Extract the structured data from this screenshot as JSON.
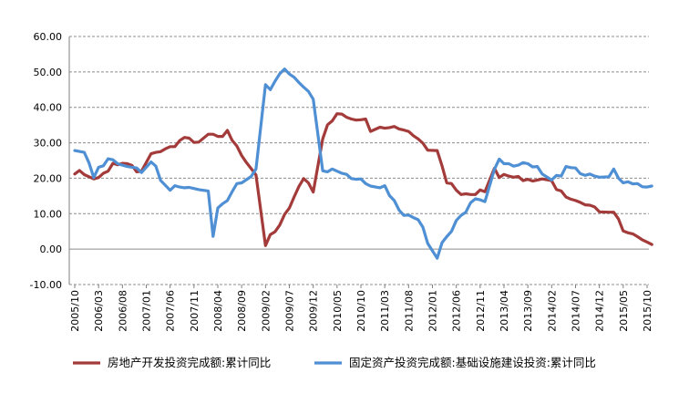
{
  "chart_data": {
    "type": "line",
    "y_ticks": [
      "60.00",
      "50.00",
      "40.00",
      "30.00",
      "20.00",
      "10.00",
      "0.00",
      "-10.00"
    ],
    "ylim": [
      -10,
      60
    ],
    "grid": true,
    "legend_position": "bottom",
    "x_ticks": [
      "2005/10",
      "2006/03",
      "2006/08",
      "2007/01",
      "2007/06",
      "2007/11",
      "2008/04",
      "2008/09",
      "2009/02",
      "2009/07",
      "2009/12",
      "2010/05",
      "2010/10",
      "2011/03",
      "2011/08",
      "2012/01",
      "2012/06",
      "2012/11",
      "2013/04",
      "2013/09",
      "2014/02",
      "2014/07",
      "2014/12",
      "2015/05",
      "2015/10"
    ],
    "series": [
      {
        "name": "房地产开发投资完成额:累计同比",
        "color": "#a33b3a",
        "x": [
          "2005/10",
          "2005/11",
          "2005/12",
          "2006/02",
          "2006/03",
          "2006/04",
          "2006/05",
          "2006/06",
          "2006/07",
          "2006/08",
          "2006/09",
          "2006/10",
          "2006/11",
          "2006/12",
          "2007/02",
          "2007/03",
          "2007/04",
          "2007/05",
          "2007/06",
          "2007/07",
          "2007/08",
          "2007/09",
          "2007/10",
          "2007/11",
          "2007/12",
          "2008/02",
          "2008/03",
          "2008/04",
          "2008/05",
          "2008/06",
          "2008/07",
          "2008/08",
          "2008/09",
          "2008/10",
          "2008/11",
          "2008/12",
          "2009/02",
          "2009/03",
          "2009/04",
          "2009/05",
          "2009/06",
          "2009/07",
          "2009/08",
          "2009/09",
          "2009/10",
          "2009/11",
          "2009/12",
          "2010/02",
          "2010/03",
          "2010/04",
          "2010/05",
          "2010/06",
          "2010/07",
          "2010/08",
          "2010/09",
          "2010/10",
          "2010/11",
          "2010/12",
          "2011/02",
          "2011/03",
          "2011/04",
          "2011/05",
          "2011/06",
          "2011/07",
          "2011/08",
          "2011/09",
          "2011/10",
          "2011/11",
          "2011/12",
          "2012/02",
          "2012/03",
          "2012/04",
          "2012/05",
          "2012/06",
          "2012/07",
          "2012/08",
          "2012/09",
          "2012/10",
          "2012/11",
          "2012/12",
          "2013/02",
          "2013/03",
          "2013/04",
          "2013/05",
          "2013/06",
          "2013/07",
          "2013/08",
          "2013/09",
          "2013/10",
          "2013/11",
          "2013/12",
          "2014/02",
          "2014/03",
          "2014/04",
          "2014/05",
          "2014/06",
          "2014/07",
          "2014/08",
          "2014/09",
          "2014/10",
          "2014/11",
          "2014/12",
          "2015/02",
          "2015/03",
          "2015/04",
          "2015/05",
          "2015/06",
          "2015/07",
          "2015/08",
          "2015/09",
          "2015/10",
          "2015/11"
        ],
        "values": [
          21.2,
          22.2,
          21.0,
          19.8,
          20.2,
          21.4,
          22.0,
          24.2,
          23.8,
          24.2,
          24.1,
          23.6,
          21.8,
          22.0,
          26.9,
          27.3,
          27.5,
          28.3,
          28.9,
          28.9,
          30.6,
          31.5,
          31.3,
          30.1,
          30.2,
          32.4,
          32.4,
          31.8,
          31.8,
          33.5,
          30.7,
          29.1,
          26.4,
          24.4,
          22.7,
          20.9,
          1.0,
          4.1,
          4.9,
          6.8,
          9.8,
          11.6,
          14.7,
          17.7,
          19.9,
          18.7,
          16.1,
          31.1,
          35.1,
          36.2,
          38.2,
          38.1,
          37.2,
          36.7,
          36.4,
          36.5,
          36.7,
          33.2,
          34.4,
          34.1,
          34.3,
          34.6,
          33.9,
          33.6,
          33.2,
          32.0,
          31.1,
          29.9,
          27.9,
          27.8,
          23.5,
          18.7,
          18.5,
          16.6,
          15.4,
          15.6,
          15.4,
          15.4,
          16.7,
          16.2,
          22.8,
          20.2,
          21.1,
          20.6,
          20.3,
          20.5,
          19.3,
          19.7,
          19.2,
          19.5,
          19.8,
          19.3,
          16.8,
          16.4,
          14.7,
          14.1,
          13.7,
          13.2,
          12.5,
          12.4,
          11.9,
          10.5,
          10.4,
          10.4,
          8.5,
          5.1,
          4.6,
          4.3,
          3.5,
          2.6,
          2.0,
          1.3
        ]
      },
      {
        "name": "固定资产投资完成额:基础设施建设投资:累计同比",
        "color": "#4f8fd4",
        "x": [
          "2005/10",
          "2005/12",
          "2006/01",
          "2006/02",
          "2006/03",
          "2006/04",
          "2006/05",
          "2006/06",
          "2006/07",
          "2006/08",
          "2006/09",
          "2006/10",
          "2006/11",
          "2006/12",
          "2007/02",
          "2007/03",
          "2007/04",
          "2007/05",
          "2007/06",
          "2007/07",
          "2007/08",
          "2007/09",
          "2007/10",
          "2007/11",
          "2007/12",
          "2008/02",
          "2008/03",
          "2008/04",
          "2008/05",
          "2008/06",
          "2008/07",
          "2008/08",
          "2008/09",
          "2008/10",
          "2008/11",
          "2008/12",
          "2009/02",
          "2009/03",
          "2009/04",
          "2009/05",
          "2009/06",
          "2009/07",
          "2009/08",
          "2009/09",
          "2009/10",
          "2009/11",
          "2009/12",
          "2010/02",
          "2010/03",
          "2010/04",
          "2010/05",
          "2010/06",
          "2010/07",
          "2010/08",
          "2010/09",
          "2010/10",
          "2010/11",
          "2010/12",
          "2011/02",
          "2011/03",
          "2011/04",
          "2011/05",
          "2011/06",
          "2011/07",
          "2011/08",
          "2011/09",
          "2011/10",
          "2011/11",
          "2011/12",
          "2012/02",
          "2012/03",
          "2012/04",
          "2012/05",
          "2012/06",
          "2012/07",
          "2012/08",
          "2012/09",
          "2012/10",
          "2012/11",
          "2012/12",
          "2013/02",
          "2013/03",
          "2013/04",
          "2013/05",
          "2013/06",
          "2013/07",
          "2013/08",
          "2013/09",
          "2013/10",
          "2013/11",
          "2013/12",
          "2014/02",
          "2014/03",
          "2014/04",
          "2014/05",
          "2014/06",
          "2014/07",
          "2014/08",
          "2014/09",
          "2014/10",
          "2014/11",
          "2014/12",
          "2015/02",
          "2015/03",
          "2015/04",
          "2015/05",
          "2015/06",
          "2015/07",
          "2015/08",
          "2015/09",
          "2015/10",
          "2015/11"
        ],
        "values": [
          27.8,
          27.3,
          24.3,
          20.2,
          23.1,
          23.5,
          25.5,
          25.2,
          24.1,
          23.7,
          23.3,
          23.1,
          22.9,
          21.6,
          24.6,
          23.4,
          19.4,
          18.0,
          16.6,
          17.9,
          17.5,
          17.3,
          17.4,
          17.1,
          16.8,
          16.4,
          3.6,
          11.6,
          12.8,
          13.7,
          16.2,
          18.5,
          18.7,
          19.6,
          20.5,
          22.6,
          46.4,
          45.0,
          47.4,
          49.5,
          50.8,
          49.4,
          48.5,
          47.0,
          45.7,
          44.5,
          42.3,
          22.1,
          21.8,
          22.6,
          22.0,
          21.4,
          21.1,
          19.9,
          19.7,
          19.8,
          18.5,
          17.8,
          17.3,
          17.9,
          15.1,
          13.7,
          11.0,
          9.5,
          9.6,
          8.9,
          8.3,
          6.2,
          1.6,
          -2.6,
          1.8,
          3.5,
          5.0,
          8.1,
          9.5,
          10.4,
          13.1,
          14.2,
          13.9,
          13.4,
          22.5,
          25.4,
          24.1,
          24.1,
          23.4,
          23.7,
          24.4,
          24.1,
          23.2,
          23.3,
          21.2,
          19.5,
          20.8,
          20.6,
          23.3,
          23.0,
          22.9,
          21.3,
          20.8,
          21.2,
          20.6,
          20.3,
          20.4,
          22.6,
          20.0,
          18.7,
          19.0,
          18.4,
          18.5,
          17.6,
          17.5,
          17.8
        ]
      }
    ]
  }
}
